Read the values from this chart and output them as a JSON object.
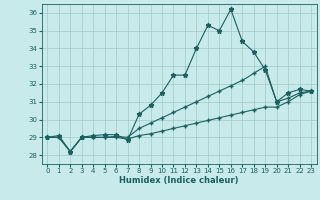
{
  "xlabel": "Humidex (Indice chaleur)",
  "ylabel": "",
  "bg_color": "#c8eaea",
  "grid_color": "#a0c8c8",
  "line_color": "#1a6060",
  "xlim": [
    -0.5,
    23.5
  ],
  "ylim": [
    27.5,
    36.5
  ],
  "yticks": [
    28,
    29,
    30,
    31,
    32,
    33,
    34,
    35,
    36
  ],
  "xticks": [
    0,
    1,
    2,
    3,
    4,
    5,
    6,
    7,
    8,
    9,
    10,
    11,
    12,
    13,
    14,
    15,
    16,
    17,
    18,
    19,
    20,
    21,
    22,
    23
  ],
  "line1_x": [
    0,
    1,
    2,
    3,
    4,
    5,
    6,
    7,
    8,
    9,
    10,
    11,
    12,
    13,
    14,
    15,
    16,
    17,
    18,
    19,
    20,
    21,
    22,
    23
  ],
  "line1_y": [
    29.0,
    29.1,
    28.2,
    29.0,
    29.1,
    29.15,
    29.15,
    28.85,
    30.3,
    30.8,
    31.5,
    32.5,
    32.5,
    34.0,
    35.3,
    35.0,
    36.2,
    34.4,
    33.8,
    32.8,
    31.0,
    31.5,
    31.7,
    31.6
  ],
  "line2_x": [
    0,
    1,
    2,
    3,
    4,
    5,
    6,
    7,
    8,
    9,
    10,
    11,
    12,
    13,
    14,
    15,
    16,
    17,
    18,
    19,
    20,
    21,
    22,
    23
  ],
  "line2_y": [
    29.0,
    29.0,
    28.2,
    29.0,
    29.0,
    29.0,
    29.05,
    29.0,
    29.5,
    29.8,
    30.1,
    30.4,
    30.7,
    31.0,
    31.3,
    31.6,
    31.9,
    32.2,
    32.6,
    33.0,
    31.0,
    31.2,
    31.5,
    31.6
  ],
  "line3_x": [
    0,
    1,
    2,
    3,
    4,
    5,
    6,
    7,
    8,
    9,
    10,
    11,
    12,
    13,
    14,
    15,
    16,
    17,
    18,
    19,
    20,
    21,
    22,
    23
  ],
  "line3_y": [
    29.0,
    29.0,
    28.2,
    29.0,
    29.0,
    29.0,
    29.0,
    28.9,
    29.1,
    29.2,
    29.35,
    29.5,
    29.65,
    29.8,
    29.95,
    30.1,
    30.25,
    30.4,
    30.55,
    30.7,
    30.7,
    31.0,
    31.4,
    31.6
  ]
}
